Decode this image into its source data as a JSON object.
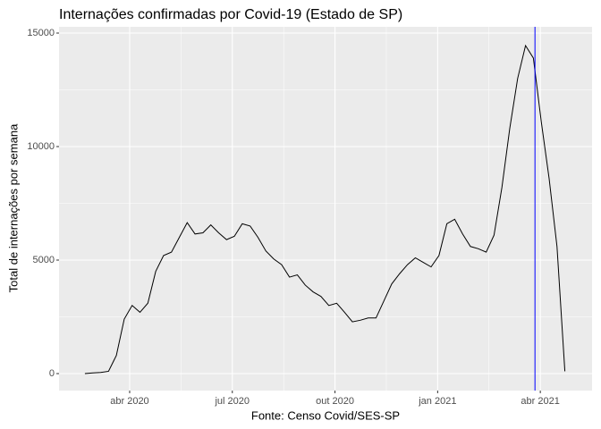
{
  "chart_data": {
    "type": "line",
    "title": "Internações confirmadas por Covid-19 (Estado de SP)",
    "x_label": "Fonte: Censo Covid/SES-SP",
    "y_label": "Total de internações por semana",
    "x": [
      2020.141,
      2020.1602,
      2020.1793,
      2020.1985,
      2020.2176,
      2020.2368,
      2020.256,
      2020.2751,
      2020.2943,
      2020.3134,
      2020.3326,
      2020.3518,
      2020.3709,
      2020.3901,
      2020.4092,
      2020.4284,
      2020.4476,
      2020.4667,
      2020.4859,
      2020.505,
      2020.5242,
      2020.5434,
      2020.5625,
      2020.5817,
      2020.6008,
      2020.62,
      2020.6392,
      2020.6583,
      2020.6775,
      2020.6966,
      2020.7158,
      2020.735,
      2020.7541,
      2020.7733,
      2020.7924,
      2020.8116,
      2020.8308,
      2020.8499,
      2020.8691,
      2020.8882,
      2020.9074,
      2020.9266,
      2020.9457,
      2020.9649,
      2020.984,
      2021.0032,
      2021.0224,
      2021.0415,
      2021.0607,
      2021.0798,
      2021.099,
      2021.1182,
      2021.1373,
      2021.1565,
      2021.1756,
      2021.1948,
      2021.214,
      2021.2331,
      2021.2523,
      2021.2714,
      2021.2906,
      2021.3098
    ],
    "series": [
      {
        "color": "#000000",
        "values": [
          0,
          30,
          50,
          100,
          800,
          2400,
          3000,
          2700,
          3100,
          4500,
          5200,
          5350,
          6000,
          6650,
          6150,
          6200,
          6550,
          6200,
          5900,
          6050,
          6600,
          6500,
          6000,
          5400,
          5050,
          4800,
          4250,
          4350,
          3900,
          3600,
          3400,
          3000,
          3100,
          2700,
          2280,
          2350,
          2450,
          2450,
          3200,
          3950,
          4400,
          4800,
          5100,
          4900,
          4700,
          5200,
          6600,
          6800,
          6150,
          5600,
          5500,
          5350,
          6100,
          8200,
          10800,
          13000,
          14450,
          13900,
          11100,
          8600,
          5600,
          100
        ]
      }
    ],
    "vline": {
      "value": 2021.237,
      "color": "#0000ff"
    },
    "xlim": [
      2020.078,
      2021.376
    ],
    "xticks": [
      {
        "value": 2020.25,
        "label": "abr 2020"
      },
      {
        "value": 2020.5,
        "label": "jul 2020"
      },
      {
        "value": 2020.75,
        "label": "out 2020"
      },
      {
        "value": 2021.0,
        "label": "jan 2021"
      },
      {
        "value": 2021.25,
        "label": "abr 2021"
      }
    ],
    "ylim": [
      -748,
      15276
    ],
    "yticks": [
      0,
      5000,
      10000,
      15000
    ],
    "grid": true
  }
}
